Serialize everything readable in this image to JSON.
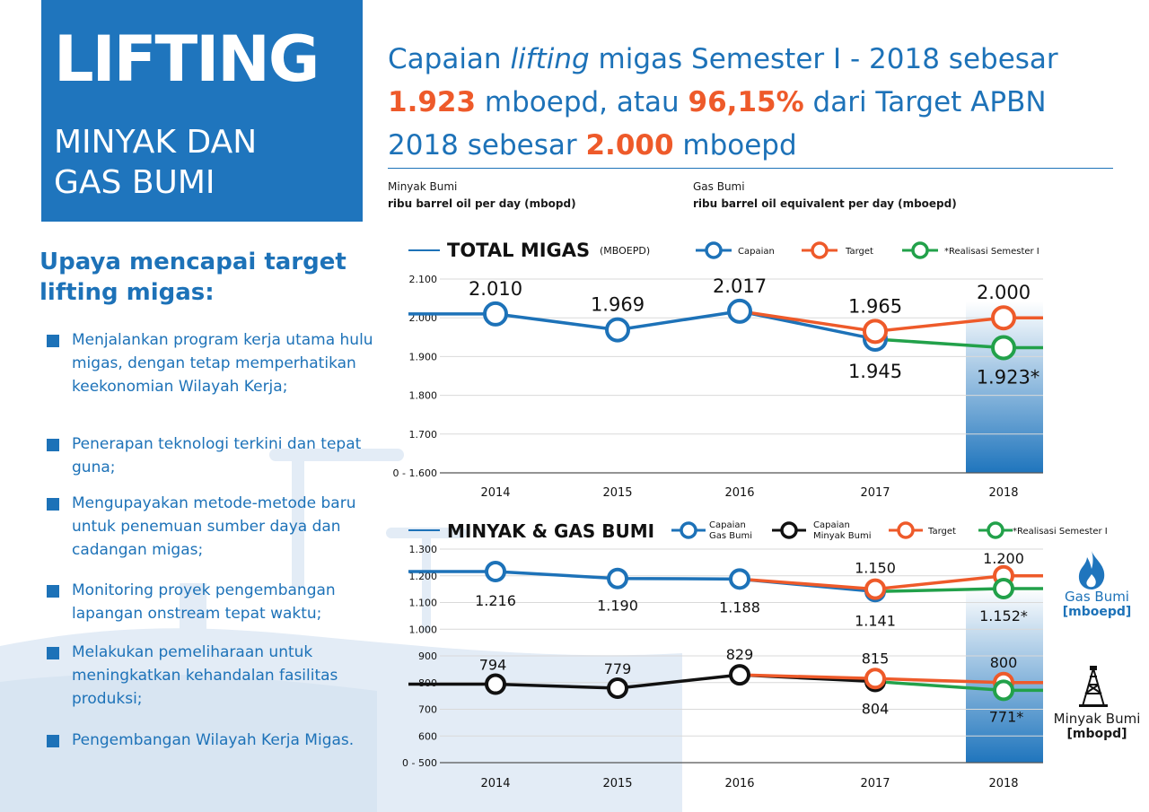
{
  "title": {
    "main": "LIFTING",
    "sub1": "MINYAK DAN",
    "sub2": "GAS BUMI"
  },
  "headline": {
    "l1_a": "Capaian ",
    "l1_b": "lifting",
    "l1_c": " migas Semester I - 2018 sebesar",
    "l2_a": "1.923",
    "l2_b": " mboepd, atau ",
    "l2_c": "96,15%",
    "l2_d": " dari Target APBN",
    "l3_a": "2018 sebesar ",
    "l3_b": "2.000",
    "l3_c": " mboepd"
  },
  "units": {
    "oil_label": "Minyak Bumi",
    "oil_desc": "ribu barrel oil per day (mbopd)",
    "gas_label": "Gas Bumi",
    "gas_desc": "ribu barrel oil equivalent per day (mboepd)"
  },
  "upaya": {
    "title": "Upaya mencapai target lifting migas:",
    "items": [
      "Menjalankan program kerja utama hulu migas, dengan tetap memperhatikan keekonomian Wilayah Kerja;",
      "Penerapan teknologi terkini dan tepat guna;",
      "Mengupayakan metode-metode baru untuk penemuan sumber daya dan cadangan migas;",
      "Monitoring proyek pengembangan lapangan onstream tepat waktu;",
      "Melakukan pemeliharaan untuk meningkatkan kehandalan fasilitas produksi;",
      "Pengembangan Wilayah Kerja Migas."
    ]
  },
  "side_labels": {
    "gas": "Gas Bumi",
    "gas_unit": "[mboepd]",
    "oil": "Minyak Bumi",
    "oil_unit": "[mbopd]"
  },
  "colors": {
    "blue": "#1d72b8",
    "orange": "#ee5a2a",
    "green": "#22a14a",
    "black": "#111111",
    "title_bg": "#1f75bd"
  },
  "chart_data": [
    {
      "type": "line",
      "title": "TOTAL MIGAS",
      "unit": "(MBOEPD)",
      "categories": [
        "2014",
        "2015",
        "2016",
        "2017",
        "2018"
      ],
      "y_ticks": [
        "2.100",
        "2.000",
        "1.900",
        "1.800",
        "1.700",
        "0 - 1.600"
      ],
      "ylim": [
        1600,
        2100
      ],
      "legend": [
        "Capaian",
        "Target",
        "*Realisasi Semester I"
      ],
      "series": [
        {
          "name": "Capaian",
          "color": "blue",
          "values": [
            2010,
            1969,
            2017,
            1945,
            null
          ],
          "labels": [
            "2.010",
            "1.969",
            "2.017",
            "1.945",
            ""
          ]
        },
        {
          "name": "Target",
          "color": "orange",
          "values": [
            null,
            null,
            2017,
            1965,
            2000
          ],
          "labels": [
            "",
            "",
            "",
            "1.965",
            "2.000"
          ]
        },
        {
          "name": "*Realisasi Semester I",
          "color": "green",
          "values": [
            null,
            null,
            null,
            1945,
            1923
          ],
          "labels": [
            "",
            "",
            "",
            "",
            "1.923*"
          ]
        }
      ]
    },
    {
      "type": "line",
      "title": "MINYAK & GAS BUMI",
      "categories": [
        "2014",
        "2015",
        "2016",
        "2017",
        "2018"
      ],
      "y_ticks": [
        "1.300",
        "1.200",
        "1.100",
        "1.000",
        "900",
        "800",
        "700",
        "600",
        "0 - 500"
      ],
      "ylim": [
        500,
        1300
      ],
      "legend": [
        "Capaian Gas Bumi",
        "Capaian Minyak Bumi",
        "Target",
        "*Realisasi Semester I"
      ],
      "series": [
        {
          "name": "Capaian Gas Bumi",
          "color": "blue",
          "values": [
            1216,
            1190,
            1188,
            1141,
            null
          ],
          "labels": [
            "1.216",
            "1.190",
            "1.188",
            "1.141",
            ""
          ]
        },
        {
          "name": "Target Gas Bumi",
          "color": "orange",
          "values": [
            null,
            null,
            1188,
            1150,
            1200
          ],
          "labels": [
            "",
            "",
            "",
            "1.150",
            "1.200"
          ]
        },
        {
          "name": "*Realisasi Semester I Gas Bumi",
          "color": "green",
          "values": [
            null,
            null,
            null,
            1141,
            1152
          ],
          "labels": [
            "",
            "",
            "",
            "",
            "1.152*"
          ]
        },
        {
          "name": "Capaian Minyak Bumi",
          "color": "black",
          "values": [
            794,
            779,
            829,
            804,
            null
          ],
          "labels": [
            "794",
            "779",
            "829",
            "804",
            ""
          ]
        },
        {
          "name": "Target Minyak Bumi",
          "color": "orange",
          "values": [
            null,
            null,
            829,
            815,
            800
          ],
          "labels": [
            "",
            "",
            "",
            "815",
            "800"
          ]
        },
        {
          "name": "*Realisasi Semester I Minyak Bumi",
          "color": "green",
          "values": [
            null,
            null,
            null,
            804,
            771
          ],
          "labels": [
            "",
            "",
            "",
            "",
            "771*"
          ]
        }
      ]
    }
  ]
}
